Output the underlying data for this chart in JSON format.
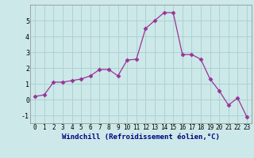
{
  "x": [
    0,
    1,
    2,
    3,
    4,
    5,
    6,
    7,
    8,
    9,
    10,
    11,
    12,
    13,
    14,
    15,
    16,
    17,
    18,
    19,
    20,
    21,
    22,
    23
  ],
  "y": [
    0.2,
    0.3,
    1.1,
    1.1,
    1.2,
    1.3,
    1.5,
    1.9,
    1.9,
    1.5,
    2.5,
    2.55,
    4.5,
    5.0,
    5.5,
    5.5,
    2.85,
    2.85,
    2.55,
    1.3,
    0.55,
    -0.35,
    0.1,
    -1.1
  ],
  "line_color": "#993399",
  "marker": "D",
  "marker_size": 2.5,
  "bg_color": "#cce8e8",
  "grid_color": "#aacece",
  "xlabel": "Windchill (Refroidissement éolien,°C)",
  "xlim": [
    -0.5,
    23.5
  ],
  "ylim": [
    -1.5,
    6.0
  ],
  "yticks": [
    -1,
    0,
    1,
    2,
    3,
    4,
    5
  ],
  "xticks": [
    0,
    1,
    2,
    3,
    4,
    5,
    6,
    7,
    8,
    9,
    10,
    11,
    12,
    13,
    14,
    15,
    16,
    17,
    18,
    19,
    20,
    21,
    22,
    23
  ],
  "xlabel_color": "#000080",
  "xlabel_fontsize": 6.5,
  "tick_fontsize": 5.5
}
